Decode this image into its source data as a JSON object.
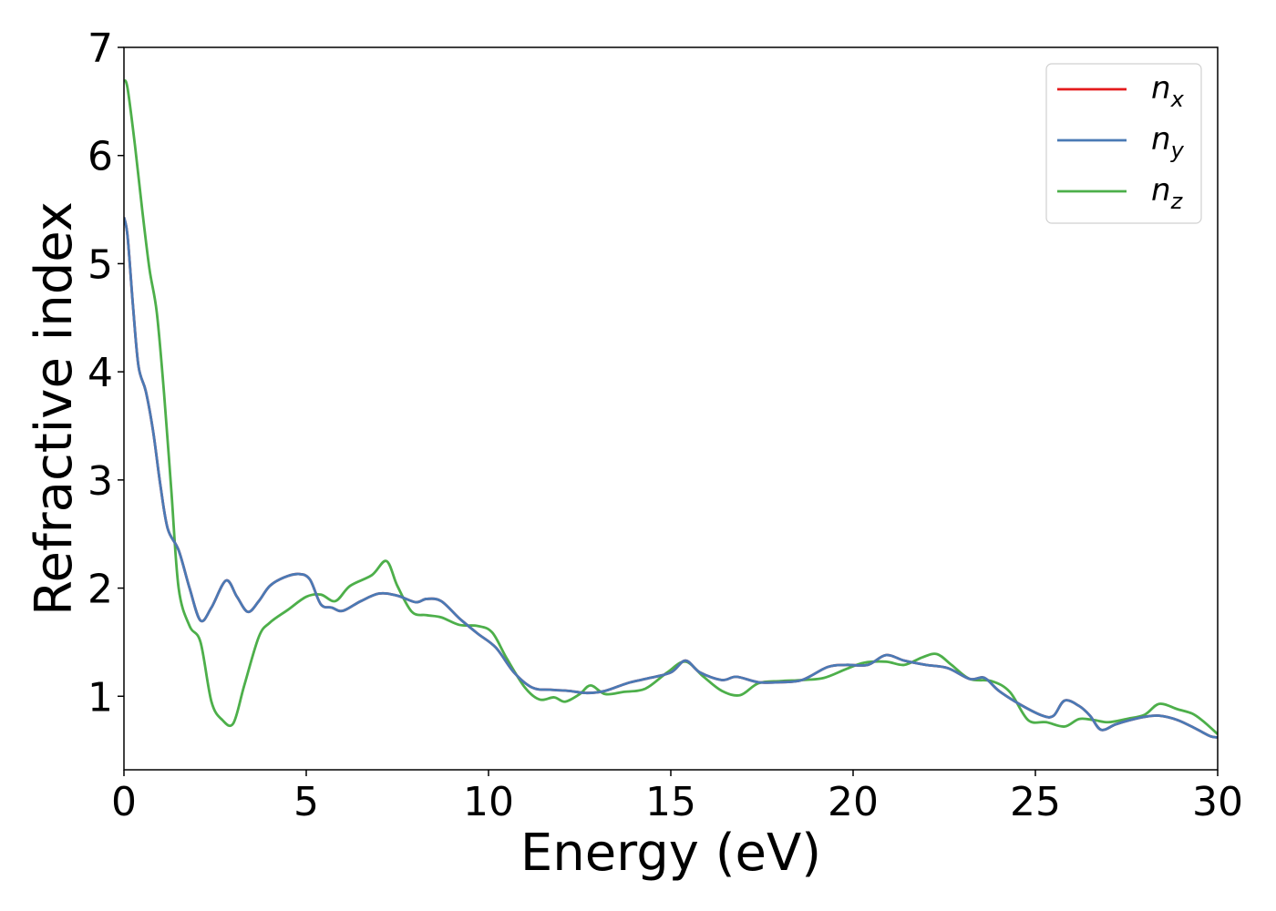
{
  "chart_data": {
    "type": "line",
    "title": "",
    "xlabel": "Energy (eV)",
    "ylabel": "Refractive index",
    "xlim": [
      0,
      30
    ],
    "ylim": [
      0.32,
      7.0
    ],
    "xticks": [
      0,
      5,
      10,
      15,
      20,
      25,
      30
    ],
    "yticks": [
      1,
      2,
      3,
      4,
      5,
      6,
      7
    ],
    "grid": false,
    "legend_position": "top-right",
    "series": [
      {
        "name": "n_x",
        "label_base": "n",
        "label_sub": "x",
        "color": "#e41a1c",
        "x": [
          0,
          0.1,
          0.25,
          0.4,
          0.6,
          0.8,
          1.0,
          1.2,
          1.5,
          1.8,
          2.1,
          2.4,
          2.8,
          3.1,
          3.4,
          3.7,
          4.0,
          4.4,
          4.8,
          5.1,
          5.4,
          5.7,
          6.0,
          6.5,
          7.0,
          7.5,
          8.0,
          8.3,
          8.7,
          9.2,
          9.7,
          10.2,
          10.7,
          11.2,
          11.7,
          12.2,
          12.7,
          13.2,
          13.8,
          14.3,
          15.0,
          15.4,
          15.8,
          16.4,
          16.8,
          17.4,
          18.0,
          18.6,
          19.3,
          19.8,
          20.4,
          20.9,
          21.4,
          22.0,
          22.6,
          23.2,
          23.6,
          24.0,
          24.6,
          25.2,
          25.5,
          25.8,
          26.2,
          26.5,
          26.8,
          27.2,
          27.6,
          28.0,
          28.4,
          28.9,
          29.4,
          29.8,
          30.0
        ],
        "y": [
          5.43,
          5.25,
          4.6,
          4.05,
          3.82,
          3.45,
          2.95,
          2.55,
          2.35,
          2.0,
          1.7,
          1.82,
          2.07,
          1.92,
          1.78,
          1.88,
          2.02,
          2.1,
          2.13,
          2.08,
          1.85,
          1.82,
          1.79,
          1.88,
          1.95,
          1.93,
          1.87,
          1.9,
          1.88,
          1.72,
          1.58,
          1.45,
          1.22,
          1.08,
          1.06,
          1.05,
          1.03,
          1.05,
          1.12,
          1.16,
          1.22,
          1.33,
          1.22,
          1.15,
          1.18,
          1.13,
          1.13,
          1.15,
          1.27,
          1.29,
          1.29,
          1.38,
          1.33,
          1.29,
          1.26,
          1.16,
          1.17,
          1.05,
          0.92,
          0.82,
          0.82,
          0.96,
          0.91,
          0.82,
          0.69,
          0.74,
          0.78,
          0.81,
          0.82,
          0.78,
          0.7,
          0.63,
          0.62
        ]
      },
      {
        "name": "n_y",
        "label_base": "n",
        "label_sub": "y",
        "color": "#4a7ab5",
        "x": [
          0,
          0.1,
          0.25,
          0.4,
          0.6,
          0.8,
          1.0,
          1.2,
          1.5,
          1.8,
          2.1,
          2.4,
          2.8,
          3.1,
          3.4,
          3.7,
          4.0,
          4.4,
          4.8,
          5.1,
          5.4,
          5.7,
          6.0,
          6.5,
          7.0,
          7.5,
          8.0,
          8.3,
          8.7,
          9.2,
          9.7,
          10.2,
          10.7,
          11.2,
          11.7,
          12.2,
          12.7,
          13.2,
          13.8,
          14.3,
          15.0,
          15.4,
          15.8,
          16.4,
          16.8,
          17.4,
          18.0,
          18.6,
          19.3,
          19.8,
          20.4,
          20.9,
          21.4,
          22.0,
          22.6,
          23.2,
          23.6,
          24.0,
          24.6,
          25.2,
          25.5,
          25.8,
          26.2,
          26.5,
          26.8,
          27.2,
          27.6,
          28.0,
          28.4,
          28.9,
          29.4,
          29.8,
          30.0
        ],
        "y": [
          5.43,
          5.25,
          4.6,
          4.05,
          3.82,
          3.45,
          2.95,
          2.55,
          2.35,
          2.0,
          1.7,
          1.82,
          2.07,
          1.92,
          1.78,
          1.88,
          2.02,
          2.1,
          2.13,
          2.08,
          1.85,
          1.82,
          1.79,
          1.88,
          1.95,
          1.93,
          1.87,
          1.9,
          1.88,
          1.72,
          1.58,
          1.45,
          1.22,
          1.08,
          1.06,
          1.05,
          1.03,
          1.05,
          1.12,
          1.16,
          1.22,
          1.33,
          1.22,
          1.15,
          1.18,
          1.13,
          1.13,
          1.15,
          1.27,
          1.29,
          1.29,
          1.38,
          1.33,
          1.29,
          1.26,
          1.16,
          1.17,
          1.05,
          0.92,
          0.82,
          0.82,
          0.96,
          0.91,
          0.82,
          0.69,
          0.74,
          0.78,
          0.81,
          0.82,
          0.78,
          0.7,
          0.63,
          0.62
        ]
      },
      {
        "name": "n_z",
        "label_base": "n",
        "label_sub": "z",
        "color": "#4daf4a",
        "x": [
          0,
          0.1,
          0.3,
          0.5,
          0.7,
          0.9,
          1.1,
          1.3,
          1.5,
          1.8,
          2.1,
          2.4,
          2.7,
          3.0,
          3.3,
          3.7,
          4.0,
          4.5,
          5.0,
          5.4,
          5.8,
          6.2,
          6.8,
          7.2,
          7.5,
          7.9,
          8.3,
          8.7,
          9.2,
          9.7,
          10.1,
          10.5,
          11.0,
          11.4,
          11.8,
          12.1,
          12.5,
          12.8,
          13.2,
          13.7,
          14.3,
          14.9,
          15.4,
          15.9,
          16.4,
          16.9,
          17.4,
          18.0,
          18.6,
          19.2,
          19.8,
          20.3,
          20.9,
          21.4,
          21.9,
          22.3,
          22.7,
          23.2,
          23.8,
          24.3,
          24.8,
          25.3,
          25.8,
          26.2,
          26.6,
          27.0,
          27.5,
          28.0,
          28.4,
          28.9,
          29.3,
          29.6,
          30.0
        ],
        "y": [
          6.7,
          6.62,
          6.1,
          5.5,
          4.95,
          4.55,
          3.8,
          2.9,
          2.0,
          1.65,
          1.5,
          0.95,
          0.78,
          0.75,
          1.1,
          1.55,
          1.68,
          1.8,
          1.92,
          1.94,
          1.88,
          2.02,
          2.12,
          2.25,
          2.02,
          1.78,
          1.75,
          1.73,
          1.66,
          1.65,
          1.59,
          1.35,
          1.08,
          0.97,
          0.99,
          0.95,
          1.02,
          1.1,
          1.02,
          1.04,
          1.07,
          1.22,
          1.32,
          1.18,
          1.05,
          1.01,
          1.12,
          1.14,
          1.15,
          1.17,
          1.25,
          1.31,
          1.32,
          1.29,
          1.36,
          1.39,
          1.29,
          1.16,
          1.14,
          1.04,
          0.78,
          0.76,
          0.72,
          0.79,
          0.78,
          0.76,
          0.79,
          0.83,
          0.93,
          0.88,
          0.84,
          0.77,
          0.65
        ]
      }
    ]
  }
}
